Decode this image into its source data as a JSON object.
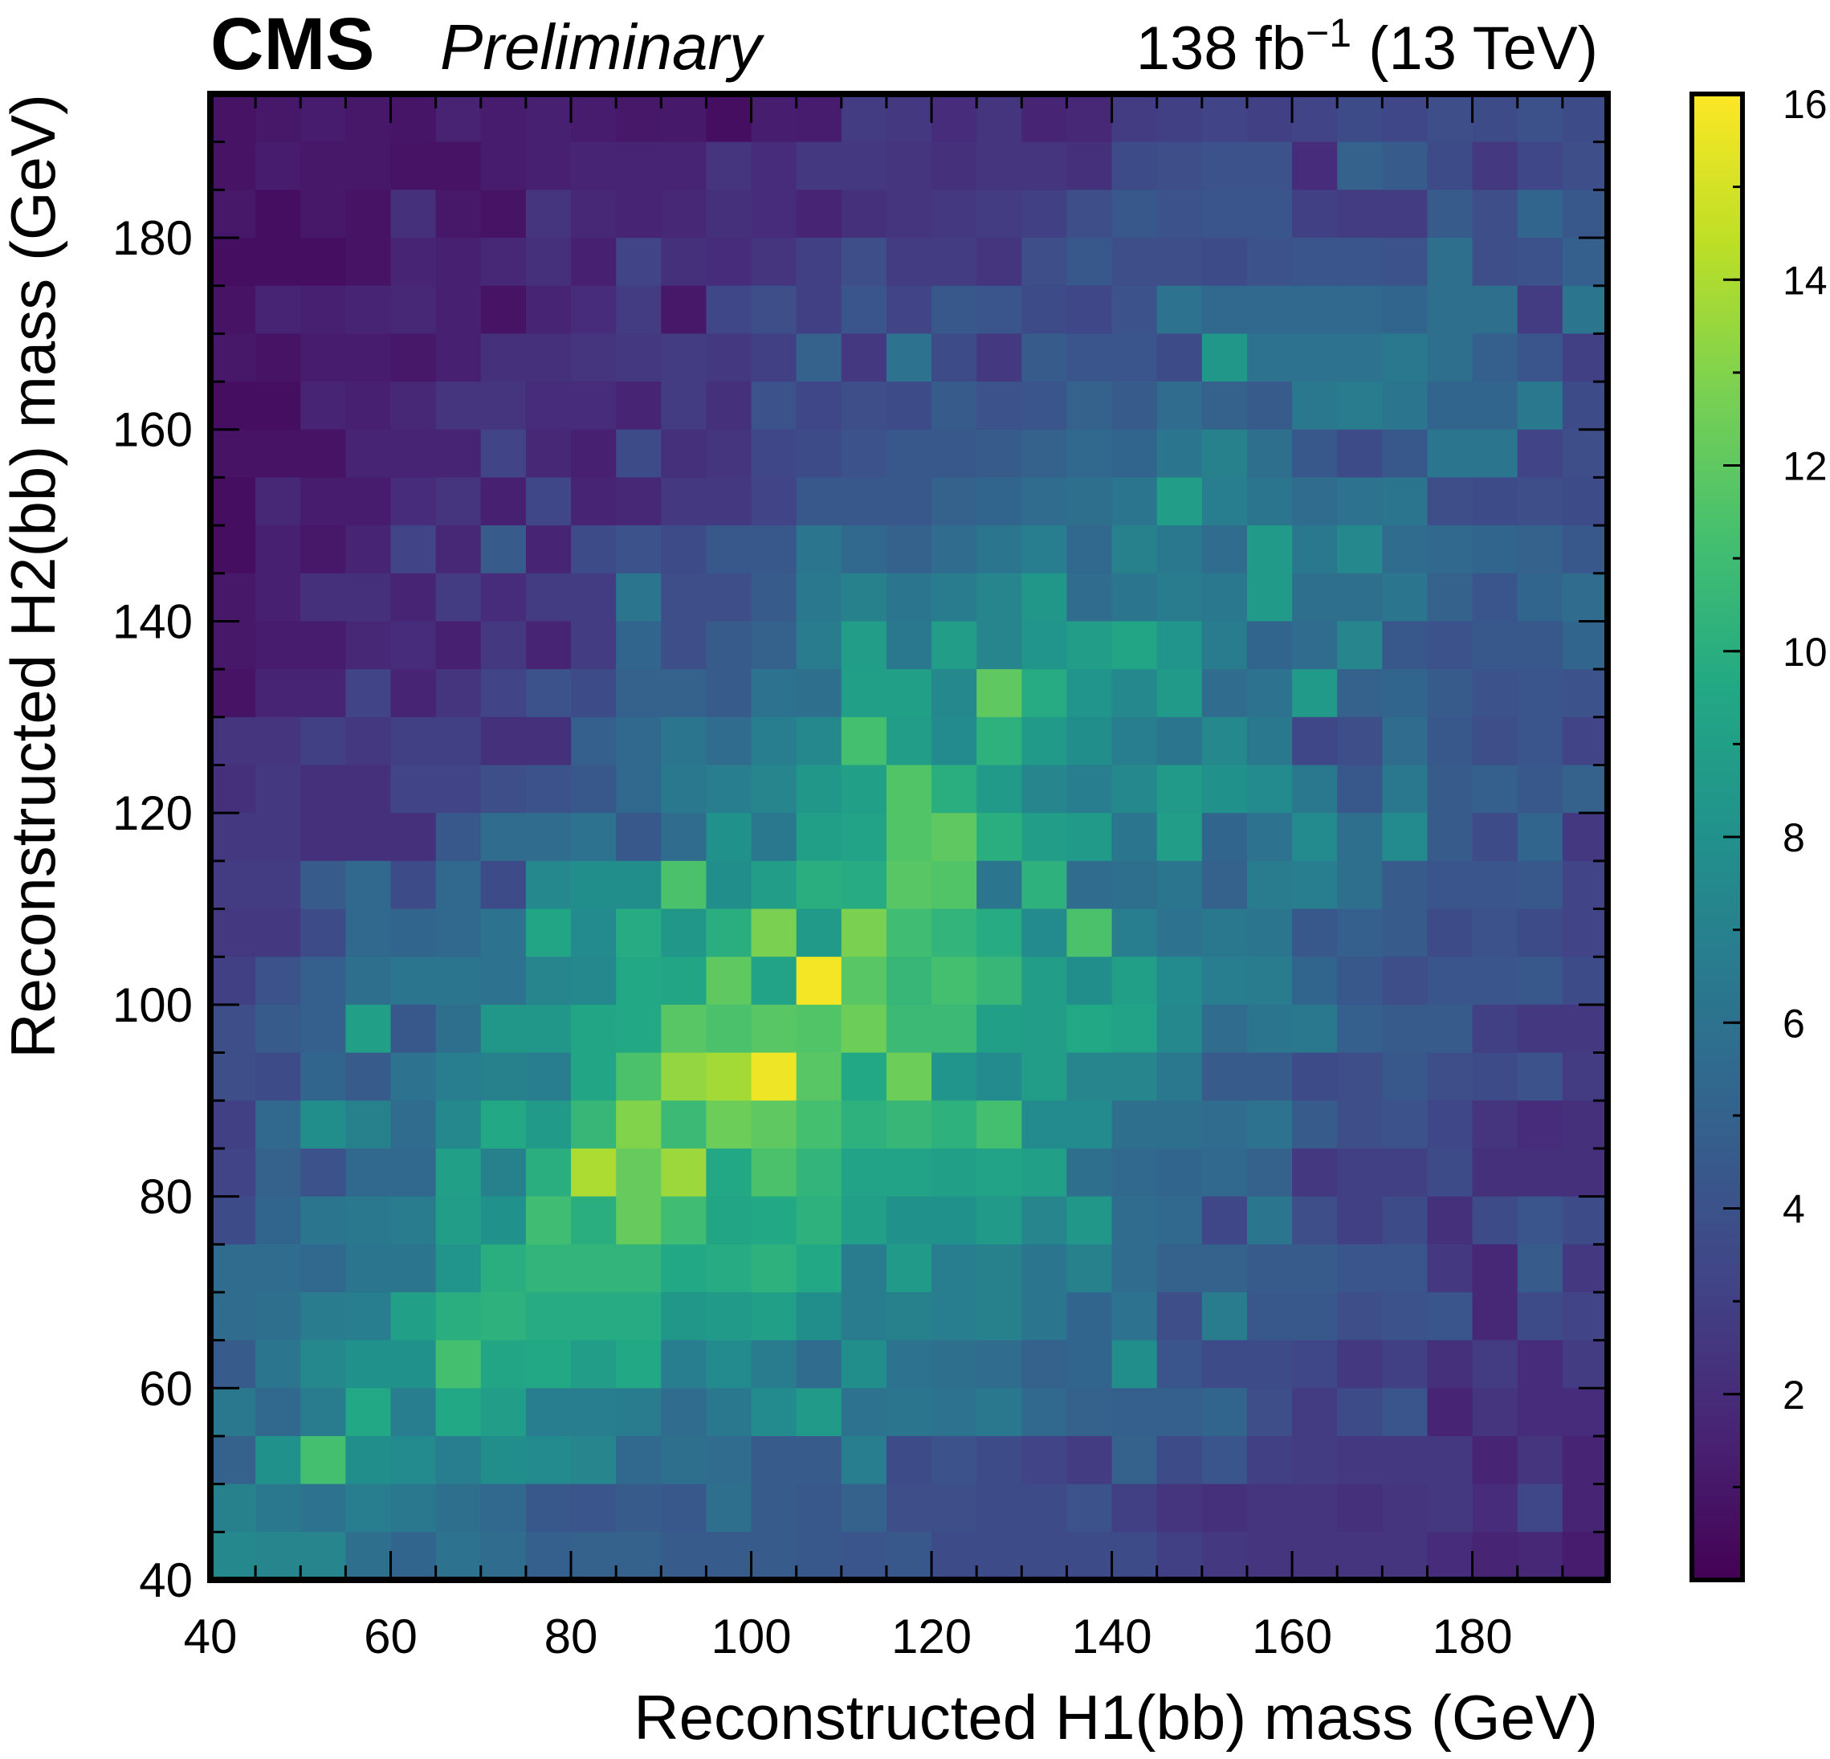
{
  "header": {
    "experiment": "CMS",
    "status": "Preliminary",
    "lumi_prefix": "138 fb",
    "lumi_exponent": "−1",
    "energy": " (13 TeV)"
  },
  "chart_data": {
    "type": "heatmap",
    "xlabel": "Reconstructed H1(bb) mass (GeV)",
    "ylabel": "Reconstructed H2(bb) mass (GeV)",
    "xlim": [
      40,
      195
    ],
    "ylim": [
      40,
      195
    ],
    "bin_width": 5,
    "x_ticks": [
      40,
      60,
      80,
      100,
      120,
      140,
      160,
      180
    ],
    "y_ticks": [
      40,
      60,
      80,
      100,
      120,
      140,
      160,
      180
    ],
    "colorbar": {
      "colormap": "viridis",
      "range": [
        0,
        16
      ],
      "ticks": [
        2,
        4,
        6,
        8,
        10,
        12,
        14,
        16
      ]
    },
    "row_order": "top-to-bottom (y = 190-195 first)",
    "z": [
      [
        0.8,
        1.0,
        1.2,
        1.0,
        0.9,
        1.5,
        1.2,
        1.4,
        1.2,
        1.0,
        1.1,
        0.6,
        1.3,
        1.2,
        2.8,
        2.6,
        2.0,
        2.4,
        1.6,
        1.8,
        2.8,
        3.0,
        3.2,
        3.0,
        3.2,
        3.6,
        3.4,
        3.8,
        3.6,
        3.9,
        3.6
      ],
      [
        0.8,
        1.2,
        1.0,
        1.0,
        0.8,
        0.8,
        1.2,
        1.4,
        1.6,
        1.6,
        1.6,
        2.4,
        2.0,
        2.6,
        2.6,
        2.4,
        2.2,
        2.4,
        2.4,
        2.2,
        3.6,
        3.8,
        4.0,
        4.0,
        2.0,
        5.0,
        4.6,
        3.6,
        2.6,
        3.4,
        3.8
      ],
      [
        1.0,
        0.6,
        1.0,
        0.8,
        2.2,
        1.0,
        0.8,
        2.4,
        1.8,
        1.6,
        1.8,
        2.2,
        2.0,
        1.6,
        2.2,
        2.4,
        2.6,
        2.8,
        3.0,
        3.8,
        4.4,
        4.0,
        4.2,
        4.2,
        3.0,
        2.8,
        2.8,
        4.6,
        3.8,
        5.2,
        4.4
      ],
      [
        0.6,
        0.6,
        0.6,
        0.8,
        1.6,
        1.4,
        1.8,
        2.2,
        1.4,
        3.2,
        2.2,
        2.0,
        2.4,
        3.0,
        3.8,
        2.8,
        2.8,
        2.4,
        3.8,
        4.4,
        3.8,
        3.8,
        3.6,
        4.0,
        4.2,
        4.2,
        4.0,
        5.8,
        3.8,
        4.0,
        4.8
      ],
      [
        0.8,
        1.6,
        1.4,
        1.6,
        1.8,
        1.4,
        0.8,
        1.6,
        2.0,
        2.8,
        1.0,
        3.4,
        3.8,
        3.0,
        4.2,
        3.2,
        4.4,
        4.2,
        3.6,
        3.4,
        4.0,
        6.0,
        5.4,
        5.4,
        5.4,
        5.4,
        5.2,
        5.8,
        5.8,
        2.8,
        6.2
      ],
      [
        1.0,
        0.8,
        1.2,
        1.2,
        1.0,
        1.4,
        2.2,
        2.2,
        2.4,
        2.6,
        2.8,
        2.6,
        3.0,
        5.0,
        2.6,
        6.0,
        3.6,
        2.6,
        4.6,
        4.2,
        4.2,
        3.6,
        8.4,
        6.0,
        6.0,
        6.0,
        6.4,
        5.8,
        4.8,
        4.2,
        3.0
      ],
      [
        0.6,
        0.6,
        1.6,
        1.4,
        1.8,
        2.4,
        2.4,
        2.0,
        2.0,
        1.6,
        2.8,
        2.2,
        4.0,
        3.4,
        3.8,
        3.6,
        4.6,
        4.0,
        4.2,
        5.0,
        4.6,
        5.6,
        5.0,
        4.6,
        6.4,
        6.6,
        6.2,
        5.2,
        5.2,
        6.4,
        3.6
      ],
      [
        0.8,
        0.8,
        0.8,
        1.6,
        1.6,
        1.6,
        3.2,
        1.8,
        1.4,
        3.6,
        2.2,
        2.4,
        3.4,
        3.6,
        4.0,
        4.4,
        4.4,
        4.6,
        5.0,
        5.4,
        5.2,
        6.2,
        7.0,
        5.8,
        4.4,
        3.6,
        4.4,
        6.2,
        6.2,
        3.2,
        3.8
      ],
      [
        0.6,
        1.8,
        1.2,
        1.2,
        2.0,
        2.4,
        1.4,
        3.4,
        1.6,
        1.8,
        2.6,
        2.6,
        3.2,
        4.4,
        4.4,
        4.4,
        5.0,
        5.2,
        5.6,
        5.8,
        6.2,
        8.8,
        6.8,
        6.2,
        5.6,
        6.0,
        6.2,
        3.8,
        3.6,
        3.8,
        3.6
      ],
      [
        0.6,
        1.4,
        1.0,
        1.6,
        3.2,
        1.8,
        4.6,
        1.6,
        3.6,
        4.0,
        3.6,
        4.4,
        4.4,
        6.2,
        5.4,
        5.0,
        5.6,
        6.2,
        6.8,
        5.4,
        7.0,
        6.4,
        5.6,
        8.6,
        6.4,
        7.4,
        5.6,
        5.4,
        5.2,
        5.0,
        4.4
      ],
      [
        1.0,
        1.4,
        2.2,
        2.2,
        1.6,
        2.8,
        2.0,
        2.8,
        2.8,
        6.2,
        3.8,
        3.8,
        4.6,
        6.4,
        7.0,
        6.2,
        6.6,
        7.2,
        8.4,
        5.6,
        6.2,
        6.6,
        6.4,
        8.6,
        5.8,
        5.8,
        6.2,
        5.0,
        4.2,
        5.2,
        5.6
      ],
      [
        1.0,
        1.2,
        1.2,
        1.8,
        2.0,
        1.4,
        2.6,
        1.6,
        2.8,
        5.2,
        3.8,
        4.6,
        5.0,
        6.6,
        8.8,
        6.4,
        8.8,
        7.2,
        8.2,
        8.8,
        9.4,
        8.2,
        6.6,
        5.2,
        5.6,
        7.2,
        4.4,
        4.0,
        4.4,
        4.4,
        5.2
      ],
      [
        0.8,
        1.6,
        1.6,
        3.2,
        1.6,
        2.4,
        3.2,
        4.0,
        3.6,
        5.0,
        5.0,
        4.6,
        6.0,
        5.8,
        9.0,
        9.0,
        7.4,
        12.0,
        9.8,
        8.2,
        7.4,
        8.6,
        5.6,
        6.0,
        8.6,
        5.0,
        5.2,
        4.6,
        4.0,
        4.2,
        4.0
      ],
      [
        2.4,
        2.4,
        3.0,
        2.6,
        3.0,
        3.0,
        2.2,
        2.2,
        4.8,
        5.4,
        6.2,
        5.6,
        6.8,
        7.4,
        11.2,
        8.8,
        7.6,
        10.2,
        8.6,
        7.8,
        6.8,
        6.2,
        7.4,
        6.4,
        3.4,
        3.8,
        5.6,
        4.4,
        3.8,
        4.2,
        3.2
      ],
      [
        2.2,
        2.6,
        2.2,
        2.2,
        3.2,
        3.2,
        3.8,
        4.0,
        4.4,
        5.4,
        6.4,
        6.8,
        7.2,
        8.4,
        9.0,
        11.6,
        10.0,
        8.6,
        7.2,
        6.8,
        7.4,
        8.6,
        8.0,
        7.6,
        6.4,
        4.4,
        6.4,
        4.6,
        4.8,
        4.4,
        5.0
      ],
      [
        2.6,
        2.6,
        2.2,
        2.2,
        2.2,
        4.4,
        5.6,
        5.6,
        6.0,
        4.4,
        5.6,
        8.0,
        6.4,
        9.0,
        9.2,
        11.6,
        12.0,
        10.0,
        8.8,
        8.6,
        6.2,
        8.8,
        5.2,
        6.0,
        7.6,
        5.8,
        7.6,
        4.6,
        3.6,
        5.2,
        2.6
      ],
      [
        2.8,
        2.8,
        4.6,
        5.4,
        3.6,
        5.4,
        3.6,
        7.4,
        7.8,
        7.8,
        11.4,
        7.8,
        8.8,
        10.0,
        9.8,
        11.8,
        11.6,
        6.2,
        10.2,
        5.6,
        5.8,
        6.2,
        5.0,
        6.6,
        6.8,
        5.8,
        4.6,
        4.2,
        4.2,
        4.4,
        3.2
      ],
      [
        2.6,
        2.6,
        3.6,
        5.4,
        5.2,
        5.4,
        6.0,
        9.4,
        7.6,
        9.8,
        8.4,
        10.0,
        12.8,
        8.6,
        12.8,
        11.0,
        10.4,
        9.8,
        7.6,
        11.4,
        6.8,
        6.0,
        6.4,
        6.2,
        4.4,
        4.8,
        4.6,
        3.6,
        4.0,
        3.6,
        3.2
      ],
      [
        3.0,
        4.0,
        4.8,
        5.8,
        6.2,
        6.2,
        6.0,
        7.2,
        7.4,
        9.6,
        9.4,
        12.0,
        9.2,
        15.8,
        11.8,
        10.6,
        11.2,
        10.6,
        8.8,
        7.8,
        9.0,
        7.6,
        6.8,
        6.6,
        5.2,
        4.4,
        3.8,
        4.2,
        4.2,
        4.4,
        3.6
      ],
      [
        3.8,
        4.6,
        4.8,
        9.0,
        4.4,
        5.8,
        8.4,
        8.4,
        9.4,
        9.6,
        11.8,
        11.4,
        11.8,
        11.6,
        12.4,
        10.8,
        10.8,
        9.0,
        8.8,
        9.6,
        9.2,
        7.4,
        5.6,
        6.2,
        6.4,
        4.8,
        4.6,
        4.6,
        3.0,
        2.6,
        2.6
      ],
      [
        3.8,
        3.6,
        5.2,
        4.6,
        6.0,
        6.8,
        7.0,
        6.8,
        9.4,
        11.4,
        13.4,
        13.8,
        15.6,
        11.8,
        9.6,
        12.4,
        8.2,
        7.6,
        8.8,
        7.2,
        7.2,
        6.4,
        4.6,
        4.6,
        3.6,
        3.8,
        4.4,
        3.8,
        3.6,
        4.0,
        2.8
      ],
      [
        3.0,
        5.4,
        7.8,
        7.0,
        5.6,
        7.4,
        9.6,
        8.6,
        10.6,
        13.0,
        10.8,
        12.4,
        12.0,
        11.2,
        10.2,
        10.6,
        10.2,
        11.2,
        7.6,
        7.6,
        5.8,
        5.8,
        5.6,
        6.0,
        4.6,
        3.8,
        4.0,
        3.4,
        2.4,
        2.0,
        2.2
      ],
      [
        3.2,
        5.0,
        4.0,
        5.4,
        5.4,
        9.0,
        7.0,
        10.0,
        14.0,
        12.2,
        13.6,
        9.6,
        11.4,
        10.4,
        9.2,
        9.2,
        9.0,
        9.2,
        9.0,
        5.8,
        5.4,
        5.2,
        5.4,
        5.0,
        2.6,
        3.0,
        3.0,
        3.6,
        2.2,
        2.2,
        2.2
      ],
      [
        3.6,
        5.2,
        6.2,
        6.4,
        6.6,
        8.8,
        8.0,
        11.0,
        10.0,
        12.2,
        11.0,
        9.4,
        9.6,
        10.2,
        9.0,
        8.0,
        8.0,
        8.6,
        7.2,
        8.4,
        5.6,
        5.4,
        3.4,
        6.2,
        3.8,
        3.0,
        3.6,
        2.2,
        3.6,
        4.2,
        3.6
      ],
      [
        5.6,
        5.6,
        5.4,
        6.2,
        6.2,
        8.2,
        10.0,
        10.4,
        10.4,
        10.4,
        9.6,
        9.8,
        10.2,
        9.6,
        6.6,
        8.6,
        6.8,
        7.0,
        6.2,
        7.0,
        5.6,
        5.0,
        5.0,
        4.6,
        4.6,
        4.2,
        4.2,
        2.6,
        1.8,
        4.6,
        2.6
      ],
      [
        5.6,
        5.8,
        6.6,
        6.8,
        9.0,
        10.0,
        10.2,
        9.8,
        9.8,
        9.8,
        8.4,
        8.6,
        9.0,
        7.8,
        6.6,
        7.0,
        6.8,
        7.0,
        6.2,
        5.2,
        6.0,
        3.8,
        6.6,
        4.4,
        4.4,
        3.8,
        4.0,
        4.2,
        1.8,
        3.6,
        3.2
      ],
      [
        4.6,
        6.2,
        7.4,
        8.0,
        8.0,
        11.2,
        9.4,
        9.6,
        8.8,
        9.6,
        6.8,
        7.6,
        6.6,
        5.6,
        7.8,
        6.0,
        5.8,
        5.6,
        5.0,
        5.2,
        7.8,
        4.2,
        3.6,
        3.6,
        3.4,
        2.6,
        3.0,
        2.2,
        2.8,
        2.0,
        2.8
      ],
      [
        6.4,
        5.4,
        6.6,
        9.6,
        6.8,
        9.6,
        8.8,
        6.8,
        6.8,
        6.6,
        5.6,
        6.4,
        7.6,
        8.6,
        6.0,
        6.2,
        6.0,
        6.4,
        5.4,
        5.0,
        4.8,
        4.8,
        5.2,
        3.8,
        2.8,
        3.6,
        4.2,
        1.6,
        2.4,
        2.0,
        2.0
      ],
      [
        5.0,
        8.0,
        11.2,
        7.8,
        7.6,
        6.8,
        7.8,
        7.6,
        7.2,
        5.4,
        5.8,
        5.6,
        4.6,
        4.6,
        6.8,
        3.6,
        4.0,
        3.6,
        3.2,
        2.8,
        5.0,
        3.6,
        4.2,
        3.0,
        2.8,
        2.6,
        2.6,
        2.6,
        1.6,
        2.4,
        1.6
      ],
      [
        7.0,
        6.4,
        6.0,
        6.8,
        6.4,
        5.8,
        5.4,
        4.4,
        4.2,
        4.6,
        4.4,
        5.8,
        4.6,
        4.4,
        5.0,
        3.8,
        3.8,
        3.6,
        3.6,
        4.0,
        3.0,
        2.4,
        2.2,
        2.4,
        2.4,
        2.2,
        2.4,
        2.6,
        2.0,
        3.4,
        1.6
      ],
      [
        7.4,
        7.2,
        7.2,
        5.8,
        5.2,
        6.0,
        5.6,
        4.8,
        5.0,
        5.0,
        4.6,
        4.6,
        4.6,
        4.4,
        4.2,
        4.4,
        3.6,
        3.6,
        3.6,
        3.6,
        3.6,
        3.0,
        2.6,
        2.4,
        2.4,
        2.4,
        2.4,
        2.0,
        1.6,
        1.8,
        1.2
      ]
    ]
  }
}
